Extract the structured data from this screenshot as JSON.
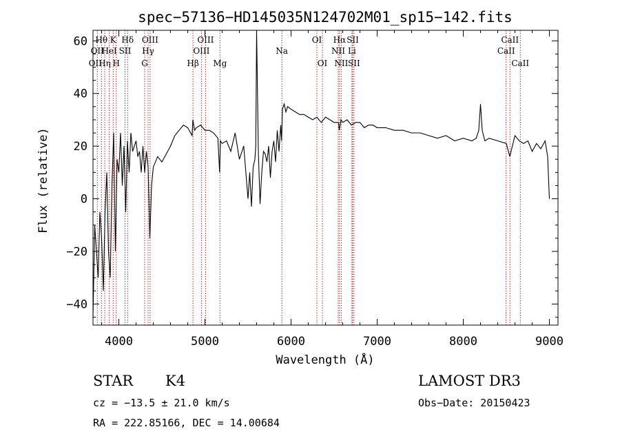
{
  "chart_data": {
    "type": "line",
    "title": "spec−57136−HD145035N124702M01_sp15−142.fits",
    "xlabel": "Wavelength (Å)",
    "ylabel": "Flux (relative)",
    "xlim": [
      3700,
      9100
    ],
    "ylim": [
      -48,
      64
    ],
    "x_ticks": [
      4000,
      5000,
      6000,
      7000,
      8000,
      9000
    ],
    "x_tick_labels": [
      "4000",
      "5000",
      "6000",
      "7000",
      "8000",
      "9000"
    ],
    "y_ticks": [
      -40,
      -20,
      0,
      20,
      40,
      60
    ],
    "y_tick_labels": [
      "−40",
      "−20",
      "0",
      "20",
      "40",
      "60"
    ],
    "series": [
      {
        "x": [
          3700,
          3720,
          3740,
          3760,
          3780,
          3800,
          3820,
          3840,
          3860,
          3880,
          3900,
          3920,
          3940,
          3960,
          3980,
          4000,
          4020,
          4040,
          4060,
          4080,
          4100,
          4120,
          4140,
          4160,
          4180,
          4200,
          4220,
          4240,
          4260,
          4280,
          4300,
          4320,
          4340,
          4360,
          4380,
          4400,
          4450,
          4500,
          4550,
          4600,
          4650,
          4700,
          4750,
          4800,
          4850,
          4860,
          4880,
          4900,
          4950,
          5000,
          5050,
          5100,
          5150,
          5170,
          5180,
          5200,
          5250,
          5300,
          5350,
          5400,
          5450,
          5500,
          5520,
          5540,
          5560,
          5580,
          5590,
          5600,
          5620,
          5640,
          5660,
          5680,
          5700,
          5720,
          5740,
          5760,
          5780,
          5800,
          5820,
          5840,
          5860,
          5880,
          5890,
          5900,
          5920,
          5940,
          5960,
          6000,
          6050,
          6100,
          6150,
          6200,
          6250,
          6300,
          6350,
          6400,
          6450,
          6500,
          6550,
          6560,
          6580,
          6600,
          6650,
          6700,
          6750,
          6800,
          6850,
          6900,
          6950,
          7000,
          7100,
          7200,
          7300,
          7400,
          7500,
          7600,
          7700,
          7800,
          7900,
          8000,
          8100,
          8150,
          8180,
          8200,
          8220,
          8250,
          8300,
          8400,
          8500,
          8540,
          8600,
          8650,
          8700,
          8750,
          8800,
          8850,
          8900,
          8950,
          8980,
          9000
        ],
        "y": [
          -45,
          -10,
          -20,
          -30,
          -5,
          -15,
          -35,
          -5,
          10,
          -20,
          -30,
          5,
          25,
          -20,
          15,
          10,
          25,
          5,
          20,
          -5,
          22,
          10,
          25,
          18,
          20,
          22,
          16,
          18,
          10,
          20,
          10,
          18,
          12,
          -15,
          5,
          12,
          16,
          14,
          17,
          20,
          24,
          26,
          28,
          27,
          24,
          30,
          26,
          27,
          28,
          26,
          26,
          25,
          23,
          10,
          22,
          21,
          22,
          18,
          25,
          15,
          20,
          0,
          10,
          -3,
          12,
          15,
          20,
          64,
          18,
          -2,
          10,
          18,
          17,
          14,
          20,
          8,
          18,
          22,
          14,
          26,
          18,
          28,
          22,
          34,
          36,
          33,
          35,
          34,
          33,
          32,
          32,
          31,
          30,
          31,
          29,
          31,
          30,
          29,
          29,
          26,
          30,
          29,
          30,
          28,
          29,
          29,
          27,
          28,
          28,
          27,
          27,
          26,
          26,
          25,
          25,
          24,
          23,
          24,
          22,
          23,
          22,
          23,
          26,
          36,
          26,
          22,
          23,
          22,
          21,
          16,
          24,
          22,
          21,
          22,
          18,
          21,
          19,
          22,
          16,
          0
        ]
      }
    ],
    "annotations": {
      "line_marks": [
        {
          "x": 3750,
          "rows": 1,
          "label": "OII",
          "label2": "OII"
        },
        {
          "x": 3798,
          "label": "Hθ"
        },
        {
          "x": 3836,
          "label": "Hη"
        },
        {
          "x": 3889,
          "label": "HeI"
        },
        {
          "x": 3934,
          "label": "K"
        },
        {
          "x": 3970,
          "label": "H"
        },
        {
          "x": 4072,
          "label": "SII"
        },
        {
          "x": 4102,
          "label": "Hδ"
        },
        {
          "x": 4300,
          "label": "G"
        },
        {
          "x": 4340,
          "label": "Hγ"
        },
        {
          "x": 4363,
          "label": "OIII"
        },
        {
          "x": 4861,
          "label": "Hβ"
        },
        {
          "x": 4959,
          "label": "OIII"
        },
        {
          "x": 5007,
          "label": "OIII"
        },
        {
          "x": 5175,
          "label": "Mg"
        },
        {
          "x": 5893,
          "label": "Na"
        },
        {
          "x": 6300,
          "label": "OI"
        },
        {
          "x": 6364,
          "label": "OI"
        },
        {
          "x": 6548,
          "label": "NII"
        },
        {
          "x": 6563,
          "label": "Hα"
        },
        {
          "x": 6583,
          "label": "NII"
        },
        {
          "x": 6707,
          "label": "Li"
        },
        {
          "x": 6716,
          "label": "SII"
        },
        {
          "x": 6731,
          "label": "SII"
        },
        {
          "x": 8498,
          "label": "CaII"
        },
        {
          "x": 8542,
          "label": "CaII"
        },
        {
          "x": 8662,
          "label": "CaII"
        }
      ],
      "labels_row1": [
        {
          "x": 3798,
          "text": "Hθ"
        },
        {
          "x": 3934,
          "text": "K"
        },
        {
          "x": 4102,
          "text": "Hδ"
        },
        {
          "x": 4363,
          "text": "OIII"
        },
        {
          "x": 5007,
          "text": "OIII"
        },
        {
          "x": 6300,
          "text": "OI"
        },
        {
          "x": 6563,
          "text": "Hα"
        },
        {
          "x": 6716,
          "text": "SII"
        },
        {
          "x": 8542,
          "text": "CaII"
        }
      ],
      "labels_row2": [
        {
          "x": 3750,
          "text": "OII"
        },
        {
          "x": 3889,
          "text": "HeI"
        },
        {
          "x": 4072,
          "text": "SII"
        },
        {
          "x": 4340,
          "text": "Hγ"
        },
        {
          "x": 4959,
          "text": "OIII"
        },
        {
          "x": 5893,
          "text": "Na"
        },
        {
          "x": 6548,
          "text": "NII"
        },
        {
          "x": 6707,
          "text": "Li"
        },
        {
          "x": 8498,
          "text": "CaII"
        }
      ],
      "labels_row3": [
        {
          "x": 3727,
          "text": "OII"
        },
        {
          "x": 3836,
          "text": "Hη"
        },
        {
          "x": 3970,
          "text": "H"
        },
        {
          "x": 4300,
          "text": "G"
        },
        {
          "x": 4861,
          "text": "Hβ"
        },
        {
          "x": 5175,
          "text": "Mg"
        },
        {
          "x": 6364,
          "text": "OI"
        },
        {
          "x": 6583,
          "text": "NII"
        },
        {
          "x": 6731,
          "text": "SII"
        },
        {
          "x": 8662,
          "text": "CaII"
        }
      ]
    },
    "grid": false
  },
  "info": {
    "object_class": "STAR",
    "subclass": "K4",
    "survey": "LAMOST DR3",
    "cz": "cz = −13.5 ± 21.0 km/s",
    "obs_date": "Obs−Date: 20150423",
    "coords": "RA = 222.85166, DEC =  14.00684"
  },
  "colors": {
    "spectrum": "#000000",
    "line_marks": "#b22222",
    "axes": "#000000"
  }
}
